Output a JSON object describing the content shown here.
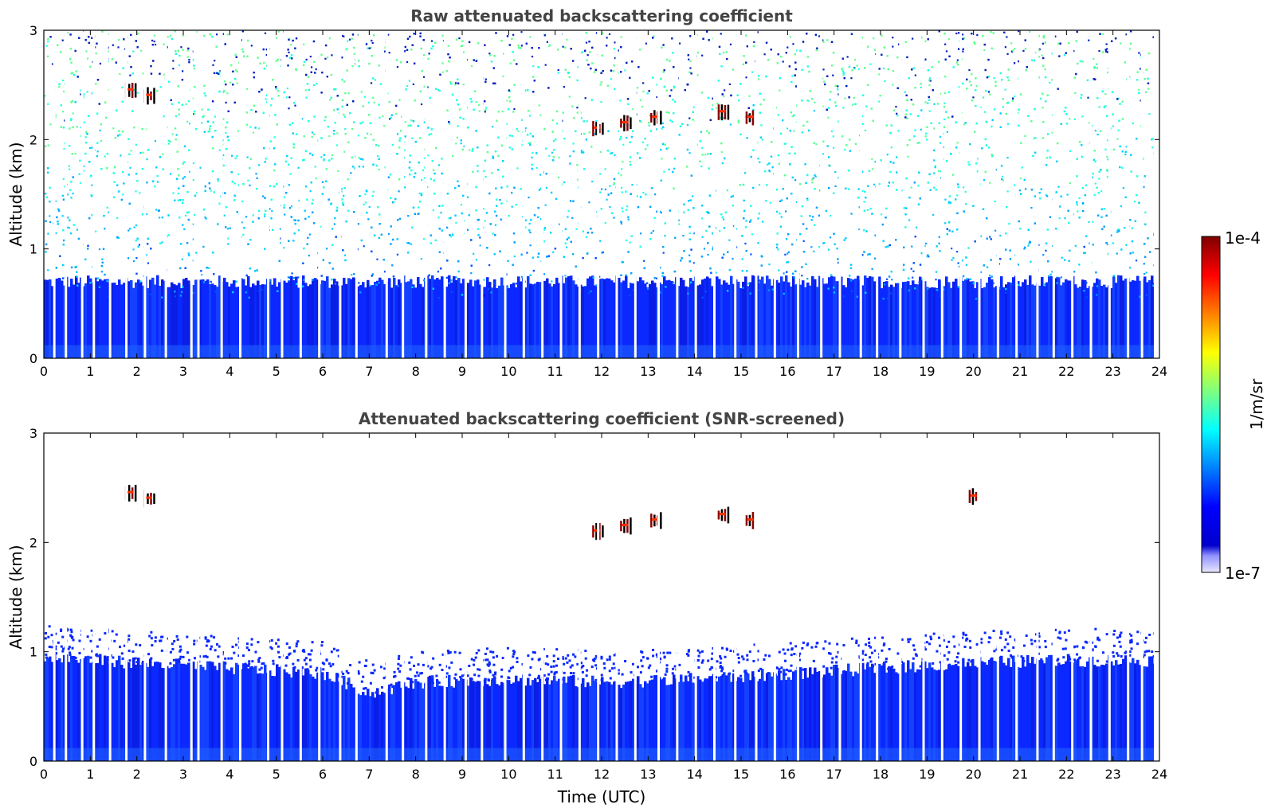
{
  "chart_data": [
    {
      "type": "heatmap",
      "title": "Raw attenuated backscattering coefficient",
      "xlabel": "",
      "ylabel": "Altitude (km)",
      "xlim": [
        0,
        24
      ],
      "ylim": [
        0,
        3
      ],
      "x_ticks": [
        "0",
        "1",
        "2",
        "3",
        "4",
        "5",
        "6",
        "7",
        "8",
        "9",
        "10",
        "11",
        "12",
        "13",
        "14",
        "15",
        "16",
        "17",
        "18",
        "19",
        "20",
        "21",
        "22",
        "23",
        "24"
      ],
      "y_ticks": [
        "0",
        "1",
        "2",
        "3"
      ],
      "colorscale": "jet",
      "boundary_layer_top_km": 0.7,
      "noise_level": "high",
      "cloud_features": [
        {
          "time_utc": 1.85,
          "altitude_km": 2.45
        },
        {
          "time_utc": 2.25,
          "altitude_km": 2.4
        },
        {
          "time_utc": 11.9,
          "altitude_km": 2.1
        },
        {
          "time_utc": 12.5,
          "altitude_km": 2.15
        },
        {
          "time_utc": 13.15,
          "altitude_km": 2.2
        },
        {
          "time_utc": 14.6,
          "altitude_km": 2.25
        },
        {
          "time_utc": 15.2,
          "altitude_km": 2.2
        }
      ]
    },
    {
      "type": "heatmap",
      "title": "Attenuated backscattering coefficient (SNR-screened)",
      "xlabel": "Time (UTC)",
      "ylabel": "Altitude (km)",
      "xlim": [
        0,
        24
      ],
      "ylim": [
        0,
        3
      ],
      "x_ticks": [
        "0",
        "1",
        "2",
        "3",
        "4",
        "5",
        "6",
        "7",
        "8",
        "9",
        "10",
        "11",
        "12",
        "13",
        "14",
        "15",
        "16",
        "17",
        "18",
        "19",
        "20",
        "21",
        "22",
        "23",
        "24"
      ],
      "y_ticks": [
        "0",
        "1",
        "2",
        "3"
      ],
      "colorscale": "jet",
      "boundary_layer_top_km": [
        {
          "t": 0,
          "h": 0.95
        },
        {
          "t": 2,
          "h": 0.9
        },
        {
          "t": 4,
          "h": 0.85
        },
        {
          "t": 6,
          "h": 0.8
        },
        {
          "t": 7,
          "h": 0.62
        },
        {
          "t": 8,
          "h": 0.72
        },
        {
          "t": 10,
          "h": 0.75
        },
        {
          "t": 12,
          "h": 0.72
        },
        {
          "t": 14,
          "h": 0.75
        },
        {
          "t": 16,
          "h": 0.8
        },
        {
          "t": 18,
          "h": 0.85
        },
        {
          "t": 20,
          "h": 0.9
        },
        {
          "t": 22,
          "h": 0.92
        },
        {
          "t": 23.9,
          "h": 0.92
        }
      ],
      "cloud_features": [
        {
          "time_utc": 1.85,
          "altitude_km": 2.45
        },
        {
          "time_utc": 2.25,
          "altitude_km": 2.4
        },
        {
          "time_utc": 11.9,
          "altitude_km": 2.1
        },
        {
          "time_utc": 12.5,
          "altitude_km": 2.15
        },
        {
          "time_utc": 13.15,
          "altitude_km": 2.2
        },
        {
          "time_utc": 14.6,
          "altitude_km": 2.25
        },
        {
          "time_utc": 15.2,
          "altitude_km": 2.2
        },
        {
          "time_utc": 20.0,
          "altitude_km": 2.42
        }
      ]
    }
  ],
  "colorbar": {
    "max_label": "1e-4",
    "min_label": "1e-7",
    "unit_label": "1/m/sr",
    "scale": "log",
    "range": [
      1e-07,
      0.0001
    ],
    "colors": [
      "#00007f",
      "#0000ff",
      "#007fff",
      "#00ffff",
      "#7fff7f",
      "#ffff00",
      "#ff7f00",
      "#ff0000",
      "#7f0000"
    ]
  },
  "data_gap_times_utc": [
    0.2,
    0.45,
    0.8,
    1.05,
    1.4,
    1.75,
    2.15,
    2.6,
    3.15,
    3.3,
    3.8,
    4.2,
    4.8,
    5.1,
    5.5,
    5.9,
    6.35,
    6.7,
    7.35,
    7.7,
    8.2,
    8.6,
    9.05,
    9.4,
    9.9,
    10.3,
    10.7,
    11.1,
    11.5,
    11.9,
    12.3,
    12.7,
    13.2,
    13.6,
    14.0,
    14.4,
    14.85,
    15.3,
    15.7,
    16.2,
    16.7,
    17.1,
    17.55,
    17.9,
    18.4,
    18.9,
    19.3,
    19.7,
    20.1,
    20.5,
    20.9,
    21.35,
    21.7,
    22.1,
    22.5,
    22.9,
    23.3,
    23.6
  ]
}
